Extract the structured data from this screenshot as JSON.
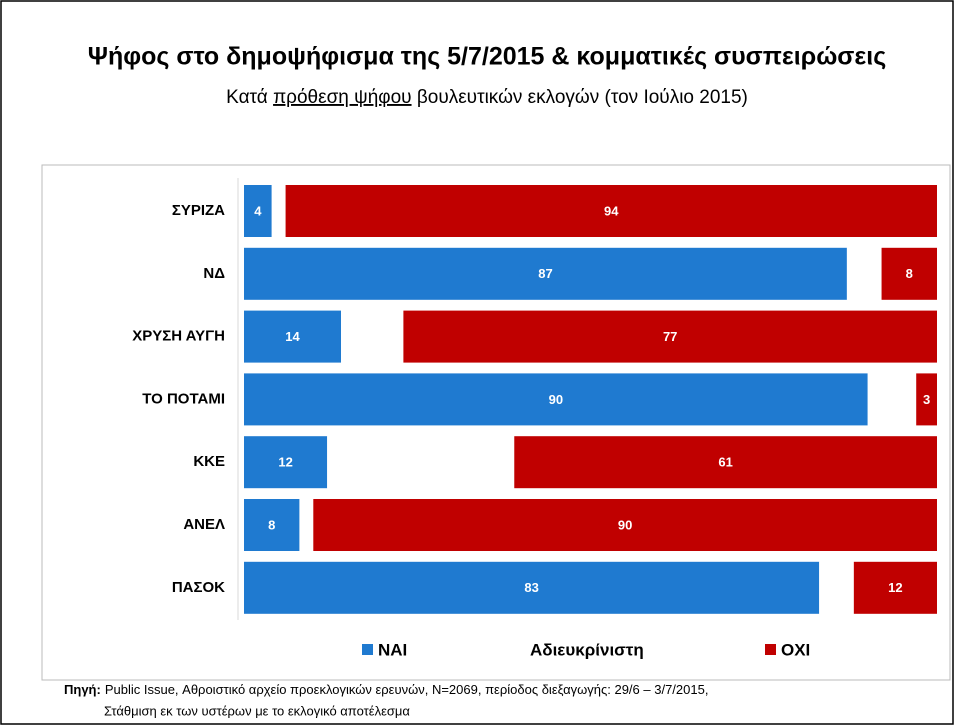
{
  "chart_data": {
    "type": "stacked_barh",
    "title": "Ψήφος στο δημοψήφισμα της 5/7/2015 & κομματικές συσπειρώσεις",
    "subtitle": [
      "Κατά ",
      "πρόθεση ψήφου",
      " βουλευτικών εκλογών (τον Ιούλιο 2015)"
    ],
    "categories": [
      "ΣΥΡΙΖΑ",
      "ΝΔ",
      "ΧΡΥΣΗ ΑΥΓΗ",
      "ΤΟ ΠΟΤΑΜΙ",
      "ΚΚΕ",
      "ΑΝΕΛ",
      "ΠΑΣΟΚ"
    ],
    "series": [
      {
        "name": "ΝΑΙ",
        "color": "#1f7ad0",
        "values": [
          4,
          87,
          14,
          90,
          12,
          8,
          83
        ],
        "labels": true
      },
      {
        "name": "Αδιευκρίνιστη",
        "color": "#ffffff",
        "values": [
          2,
          5,
          9,
          7,
          27,
          2,
          5
        ],
        "labels": false
      },
      {
        "name": "ΟΧΙ",
        "color": "#c00000",
        "values": [
          94,
          8,
          77,
          3,
          61,
          90,
          12
        ],
        "labels": true
      }
    ],
    "xlim": [
      0,
      100
    ],
    "legend": "bottom",
    "source_label": "Πηγή:",
    "source": [
      "Public Issue, Αθροιστικό αρχείο προεκλογικών ερευνών, N=2069, περίοδος διεξαγωγής: 29/6 – 3/7/2015,",
      "Στάθμιση εκ των υστέρων με το εκλογικό αποτέλεσμα"
    ]
  }
}
